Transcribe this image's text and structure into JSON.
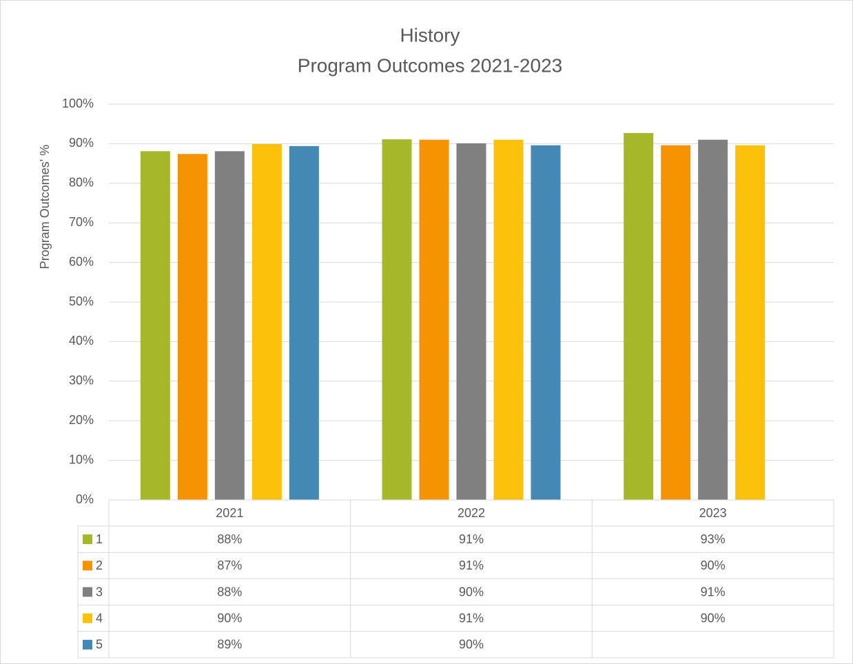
{
  "chart_data": {
    "type": "bar",
    "title": [
      "History",
      "Program Outcomes 2021-2023"
    ],
    "y_label": "Program Outcomes' %",
    "categories": [
      "2021",
      "2022",
      "2023"
    ],
    "series": [
      {
        "name": "1",
        "color": "#a6b82a",
        "values": [
          88.1,
          91.1,
          92.7
        ],
        "value_labels": [
          "88%",
          "91%",
          "93%"
        ]
      },
      {
        "name": "2",
        "color": "#f59300",
        "values": [
          87.4,
          91.0,
          89.6
        ],
        "value_labels": [
          "87%",
          "91%",
          "90%"
        ]
      },
      {
        "name": "3",
        "color": "#808080",
        "values": [
          88.1,
          90.1,
          91.0
        ],
        "value_labels": [
          "88%",
          "90%",
          "91%"
        ]
      },
      {
        "name": "4",
        "color": "#fcc10a",
        "values": [
          89.9,
          91.0,
          89.6
        ],
        "value_labels": [
          "90%",
          "91%",
          "90%"
        ]
      },
      {
        "name": "5",
        "color": "#4389b4",
        "values": [
          89.4,
          89.6,
          null
        ],
        "value_labels": [
          "89%",
          "90%",
          null
        ]
      }
    ],
    "ylim": [
      0,
      100
    ],
    "yticks": [
      {
        "value": 0,
        "label": "0%"
      },
      {
        "value": 10,
        "label": "10%"
      },
      {
        "value": 20,
        "label": "20%"
      },
      {
        "value": 30,
        "label": "30%"
      },
      {
        "value": 40,
        "label": "40%"
      },
      {
        "value": 50,
        "label": "50%"
      },
      {
        "value": 60,
        "label": "60%"
      },
      {
        "value": 70,
        "label": "70%"
      },
      {
        "value": 80,
        "label": "80%"
      },
      {
        "value": 90,
        "label": "90%"
      },
      {
        "value": 100,
        "label": "100%"
      }
    ],
    "grid": true
  }
}
